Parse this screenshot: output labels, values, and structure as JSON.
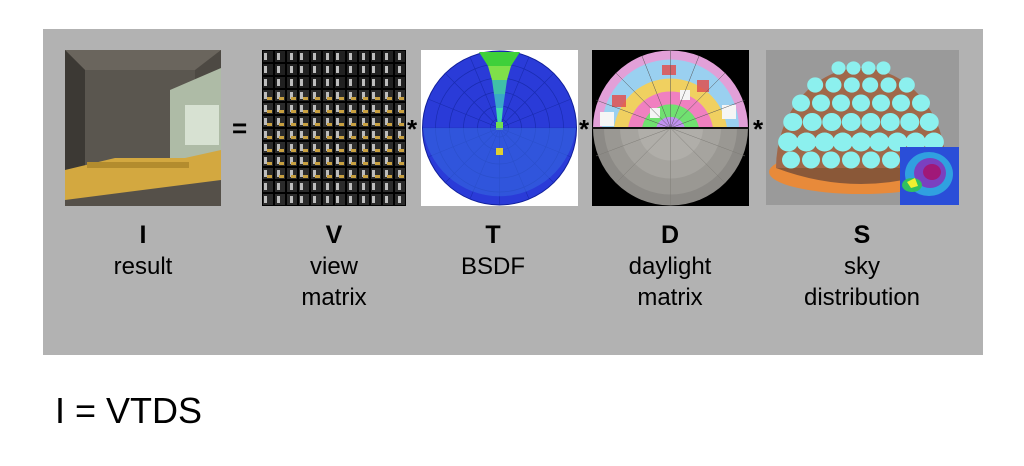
{
  "operators": {
    "equals": "=",
    "times": "*"
  },
  "terms": [
    {
      "symbol": "I",
      "line1": "result",
      "line2": ""
    },
    {
      "symbol": "V",
      "line1": "view",
      "line2": "matrix"
    },
    {
      "symbol": "T",
      "line1": "BSDF",
      "line2": ""
    },
    {
      "symbol": "D",
      "line1": "daylight",
      "line2": "matrix"
    },
    {
      "symbol": "S",
      "line1": "sky",
      "line2": "distribution"
    }
  ],
  "formula": "I = VTDS"
}
